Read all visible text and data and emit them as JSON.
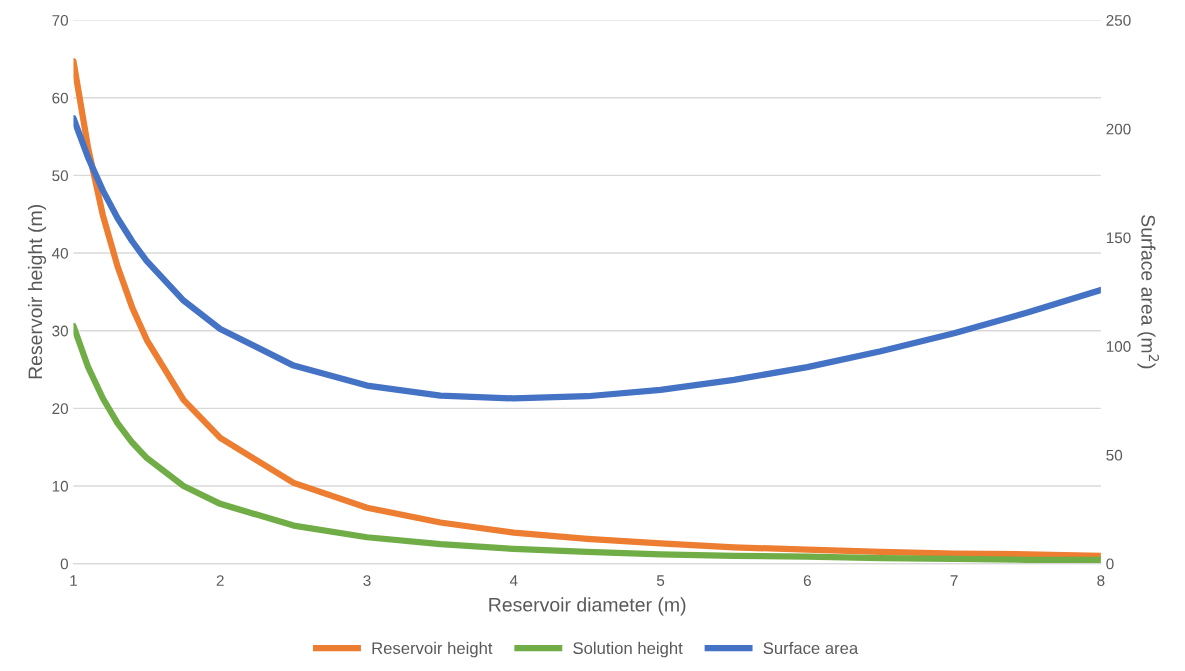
{
  "chart_data": {
    "type": "line",
    "xlabel": "Reservoir diameter (m)",
    "ylabel": "Reservoir height (m)",
    "y2label": "Surface area (m$^{2}$)",
    "x": [
      1,
      1.1,
      1.2,
      1.3,
      1.4,
      1.5,
      1.75,
      2,
      2.5,
      3,
      3.5,
      4,
      4.5,
      5,
      5.5,
      6,
      6.5,
      7,
      7.5,
      8
    ],
    "xlim": [
      1,
      8
    ],
    "xticks": [
      1,
      2,
      3,
      4,
      5,
      6,
      7,
      8
    ],
    "ylim": [
      0,
      70
    ],
    "yticks": [
      0,
      10,
      20,
      30,
      40,
      50,
      60,
      70
    ],
    "y2lim": [
      0,
      250
    ],
    "y2ticks": [
      0,
      50,
      100,
      150,
      200,
      250
    ],
    "grid": "y",
    "legend": "bottom",
    "marker": "none",
    "line_style": "solid",
    "series": [
      {
        "name": "Reservoir height",
        "color": "#ed7d31",
        "values": [
          64.7,
          53.5,
          44.9,
          38.3,
          33.0,
          28.8,
          21.1,
          16.2,
          10.4,
          7.2,
          5.3,
          4.0,
          3.2,
          2.6,
          2.1,
          1.8,
          1.5,
          1.3,
          1.2,
          1.0
        ]
      },
      {
        "name": "Solution height",
        "color": "#70ad47",
        "values": [
          30.6,
          25.3,
          21.3,
          18.1,
          15.6,
          13.6,
          10.0,
          7.7,
          4.9,
          3.4,
          2.5,
          1.9,
          1.5,
          1.2,
          1.0,
          0.9,
          0.7,
          0.6,
          0.5,
          0.5
        ]
      },
      {
        "name": "Surface area",
        "color": "#4472c4",
        "axis": "y2",
        "values": [
          204.9,
          186.7,
          171.7,
          159.0,
          148.3,
          139.1,
          121.0,
          107.9,
          91.1,
          81.9,
          77.3,
          76.0,
          77.0,
          79.9,
          84.5,
          90.4,
          97.7,
          106.0,
          115.5,
          125.9
        ]
      }
    ]
  }
}
